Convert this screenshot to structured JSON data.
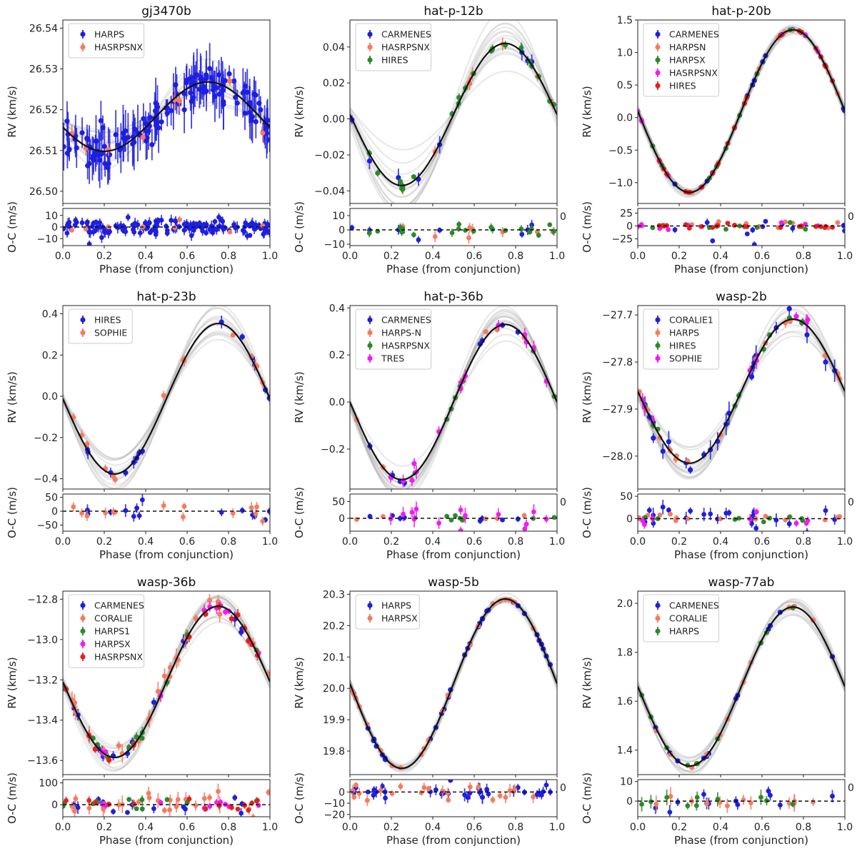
{
  "figure": {
    "rv_ylabel": "RV (km/s)",
    "oc_ylabel": "O-C (m/s)",
    "xlabel": "Phase (from conjunction)",
    "x_ticks": [
      "0.0",
      "0.2",
      "0.4",
      "0.6",
      "0.8",
      "1.0"
    ],
    "zero_marker": "0",
    "colors": {
      "HARPS_blue": "#1f1fe0",
      "salmon": "#f57b60",
      "green": "#2a8a2a",
      "magenta": "#f21bf2",
      "red": "#e81e1e",
      "model": "#111111",
      "model_band": "#9a9a9a"
    }
  },
  "chart_data": [
    {
      "type": "scatter",
      "title": "gj3470b",
      "xlim": [
        0,
        1
      ],
      "rv": {
        "ylim": [
          26.497,
          26.542
        ],
        "ticks": [
          26.5,
          26.51,
          26.52,
          26.53,
          26.54
        ],
        "tick_labels": [
          "26.50",
          "26.51",
          "26.52",
          "26.53",
          "26.54"
        ]
      },
      "oc": {
        "ylim": [
          -16,
          16
        ],
        "ticks": [
          -10,
          0,
          10
        ],
        "tick_labels": [
          "−10",
          "0",
          "10"
        ]
      },
      "model": {
        "offset": 26.5183,
        "amplitude": 0.0085,
        "phase_peak": 0.7,
        "band": 0.0009
      },
      "legend": [
        "HARPS",
        "HASRPSNX"
      ],
      "series": [
        {
          "name": "HARPS",
          "color": "#1f1fe0",
          "n": 150,
          "rv_scatter": 0.0025,
          "err_range": [
            0.002,
            0.007
          ],
          "oc_scatter": 3.5,
          "oc_err": [
            2,
            5
          ]
        },
        {
          "name": "HASRPSNX",
          "color": "#f57b60",
          "n": 8,
          "rv_scatter": 0.0015,
          "err_range": [
            0.001,
            0.003
          ],
          "oc_scatter": 2.5,
          "oc_err": [
            1,
            3
          ]
        }
      ]
    },
    {
      "type": "scatter",
      "title": "hat-p-12b",
      "xlim": [
        0,
        1
      ],
      "rv": {
        "ylim": [
          -0.047,
          0.055
        ],
        "ticks": [
          -0.04,
          -0.02,
          0.0,
          0.02,
          0.04
        ],
        "tick_labels": [
          "−0.04",
          "−0.02",
          "0.00",
          "0.02",
          "0.04"
        ]
      },
      "oc": {
        "ylim": [
          -11,
          15
        ],
        "ticks": [
          -10,
          0,
          10
        ],
        "tick_labels": [
          "−10",
          "0",
          "10"
        ]
      },
      "model": {
        "offset": 0.0025,
        "amplitude": 0.0395,
        "phase_peak": 0.75,
        "band": 0.003
      },
      "legend": [
        "CARMENES",
        "HASRPSNX",
        "HIRES"
      ],
      "series": [
        {
          "name": "CARMENES",
          "color": "#1f1fe0",
          "n": 8,
          "rv_scatter": 0.002,
          "err_range": [
            0.002,
            0.005
          ],
          "oc_scatter": 3,
          "oc_err": [
            2,
            4
          ]
        },
        {
          "name": "HASRPSNX",
          "color": "#f57b60",
          "n": 8,
          "rv_scatter": 0.002,
          "err_range": [
            0.002,
            0.005
          ],
          "oc_scatter": 3,
          "oc_err": [
            2,
            5
          ]
        },
        {
          "name": "HIRES",
          "color": "#2a8a2a",
          "n": 22,
          "rv_scatter": 0.0015,
          "err_range": [
            0.001,
            0.003
          ],
          "oc_scatter": 2,
          "oc_err": [
            1,
            3
          ]
        }
      ]
    },
    {
      "type": "scatter",
      "title": "hat-p-20b",
      "xlim": [
        0,
        1
      ],
      "rv": {
        "ylim": [
          -1.32,
          1.5
        ],
        "ticks": [
          -1.0,
          -0.5,
          0.0,
          0.5,
          1.0,
          1.5
        ],
        "tick_labels": [
          "−1.0",
          "−0.5",
          "0.0",
          "0.5",
          "1.0",
          "1.5"
        ]
      },
      "oc": {
        "ylim": [
          -38,
          34
        ],
        "ticks": [
          -25,
          0,
          25
        ],
        "tick_labels": [
          "−25",
          "0",
          "25"
        ]
      },
      "model": {
        "offset": 0.1,
        "amplitude": 1.25,
        "phase_peak": 0.75,
        "band": 0.01
      },
      "legend": [
        "CARMENES",
        "HARPSN",
        "HARPSX",
        "HASRPSNX",
        "HIRES"
      ],
      "series": [
        {
          "name": "CARMENES",
          "color": "#1f1fe0",
          "n": 12,
          "rv_scatter": 0.01,
          "err_range": [
            0.01,
            0.03
          ],
          "oc_scatter": 10,
          "oc_err": [
            3,
            8
          ]
        },
        {
          "name": "HARPSN",
          "color": "#f57b60",
          "n": 14,
          "rv_scatter": 0.004,
          "err_range": [
            0.004,
            0.01
          ],
          "oc_scatter": 3,
          "oc_err": [
            2,
            4
          ]
        },
        {
          "name": "HARPSX",
          "color": "#2a8a2a",
          "n": 10,
          "rv_scatter": 0.004,
          "err_range": [
            0.004,
            0.01
          ],
          "oc_scatter": 3,
          "oc_err": [
            2,
            4
          ]
        },
        {
          "name": "HASRPSNX",
          "color": "#f21bf2",
          "n": 10,
          "rv_scatter": 0.004,
          "err_range": [
            0.004,
            0.01
          ],
          "oc_scatter": 3,
          "oc_err": [
            2,
            4
          ]
        },
        {
          "name": "HIRES",
          "color": "#e81e1e",
          "n": 20,
          "rv_scatter": 0.004,
          "err_range": [
            0.004,
            0.01
          ],
          "oc_scatter": 2.5,
          "oc_err": [
            2,
            4
          ]
        }
      ]
    },
    {
      "type": "scatter",
      "title": "hat-p-23b",
      "xlim": [
        0,
        1
      ],
      "rv": {
        "ylim": [
          -0.45,
          0.44
        ],
        "ticks": [
          -0.4,
          -0.2,
          0.0,
          0.2,
          0.4
        ],
        "tick_labels": [
          "−0.4",
          "−0.2",
          "0.0",
          "0.2",
          "0.4"
        ]
      },
      "oc": {
        "ylim": [
          -72,
          62
        ],
        "ticks": [
          -50,
          0,
          50
        ],
        "tick_labels": [
          "−50",
          "0",
          "50"
        ]
      },
      "model": {
        "offset": -0.012,
        "amplitude": 0.365,
        "phase_peak": 0.75,
        "band": 0.015
      },
      "legend": [
        "HIRES",
        "SOPHIE"
      ],
      "series": [
        {
          "name": "HIRES",
          "color": "#1f1fe0",
          "n": 14,
          "rv_scatter": 0.015,
          "err_range": [
            0.015,
            0.035
          ],
          "oc_scatter": 15,
          "oc_err": [
            10,
            25
          ]
        },
        {
          "name": "SOPHIE",
          "color": "#f57b60",
          "n": 14,
          "rv_scatter": 0.015,
          "err_range": [
            0.01,
            0.03
          ],
          "oc_scatter": 15,
          "oc_err": [
            10,
            22
          ]
        }
      ]
    },
    {
      "type": "scatter",
      "title": "hat-p-36b",
      "xlim": [
        0,
        1
      ],
      "rv": {
        "ylim": [
          -0.37,
          0.41
        ],
        "ticks": [
          -0.2,
          0.0,
          0.2,
          0.4
        ],
        "tick_labels": [
          "−0.2",
          "0.0",
          "0.2",
          "0.4"
        ]
      },
      "oc": {
        "ylim": [
          -38,
          72
        ],
        "ticks": [
          0,
          50
        ],
        "tick_labels": [
          "0",
          "50"
        ]
      },
      "model": {
        "offset": 0.0,
        "amplitude": 0.33,
        "phase_peak": 0.75,
        "band": 0.012
      },
      "legend": [
        "CARMENES",
        "HARPS-N",
        "HASRPSNX",
        "TRES"
      ],
      "series": [
        {
          "name": "CARMENES",
          "color": "#1f1fe0",
          "n": 8,
          "rv_scatter": 0.008,
          "err_range": [
            0.008,
            0.02
          ],
          "oc_scatter": 6,
          "oc_err": [
            5,
            10
          ]
        },
        {
          "name": "HARPS-N",
          "color": "#f57b60",
          "n": 6,
          "rv_scatter": 0.008,
          "err_range": [
            0.005,
            0.015
          ],
          "oc_scatter": 5,
          "oc_err": [
            3,
            8
          ]
        },
        {
          "name": "HASRPSNX",
          "color": "#2a8a2a",
          "n": 8,
          "rv_scatter": 0.004,
          "err_range": [
            0.003,
            0.01
          ],
          "oc_scatter": 4,
          "oc_err": [
            2,
            5
          ]
        },
        {
          "name": "TRES",
          "color": "#f21bf2",
          "n": 14,
          "rv_scatter": 0.015,
          "err_range": [
            0.015,
            0.03
          ],
          "oc_scatter": 18,
          "oc_err": [
            10,
            25
          ]
        }
      ]
    },
    {
      "type": "scatter",
      "title": "wasp-2b",
      "xlim": [
        0,
        1
      ],
      "rv": {
        "ylim": [
          -28.07,
          -27.68
        ],
        "ticks": [
          -28.0,
          -27.9,
          -27.8,
          -27.7
        ],
        "tick_labels": [
          "−28.0",
          "−27.9",
          "−27.8",
          "−27.7"
        ]
      },
      "oc": {
        "ylim": [
          -28,
          55
        ],
        "ticks": [
          0,
          50
        ],
        "tick_labels": [
          "0",
          "50"
        ]
      },
      "model": {
        "offset": -27.862,
        "amplitude": 0.153,
        "phase_peak": 0.75,
        "band": 0.006
      },
      "legend": [
        "CORALIE1",
        "HARPS",
        "HIRES",
        "SOPHIE"
      ],
      "series": [
        {
          "name": "CORALIE1",
          "color": "#1f1fe0",
          "n": 22,
          "rv_scatter": 0.012,
          "err_range": [
            0.008,
            0.025
          ],
          "oc_scatter": 12,
          "oc_err": [
            6,
            18
          ]
        },
        {
          "name": "HARPS",
          "color": "#f57b60",
          "n": 16,
          "rv_scatter": 0.004,
          "err_range": [
            0.003,
            0.01
          ],
          "oc_scatter": 4,
          "oc_err": [
            3,
            8
          ]
        },
        {
          "name": "HIRES",
          "color": "#2a8a2a",
          "n": 10,
          "rv_scatter": 0.004,
          "err_range": [
            0.003,
            0.008
          ],
          "oc_scatter": 4,
          "oc_err": [
            2,
            6
          ]
        },
        {
          "name": "SOPHIE",
          "color": "#f21bf2",
          "n": 8,
          "rv_scatter": 0.01,
          "err_range": [
            0.008,
            0.02
          ],
          "oc_scatter": 8,
          "oc_err": [
            5,
            12
          ]
        }
      ]
    },
    {
      "type": "scatter",
      "title": "wasp-36b",
      "xlim": [
        0,
        1
      ],
      "rv": {
        "ylim": [
          -13.67,
          -12.76
        ],
        "ticks": [
          -13.6,
          -13.4,
          -13.2,
          -13.0,
          -12.8
        ],
        "tick_labels": [
          "−13.6",
          "−13.4",
          "−13.2",
          "−13.0",
          "−12.8"
        ]
      },
      "oc": {
        "ylim": [
          -55,
          115
        ],
        "ticks": [
          0,
          100
        ],
        "tick_labels": [
          "0",
          "100"
        ]
      },
      "model": {
        "offset": -13.21,
        "amplitude": 0.375,
        "phase_peak": 0.75,
        "band": 0.012
      },
      "legend": [
        "CARMENES",
        "CORALIE",
        "HARPS1",
        "HARPSX",
        "HASRPSNX"
      ],
      "series": [
        {
          "name": "CARMENES",
          "color": "#1f1fe0",
          "n": 14,
          "rv_scatter": 0.02,
          "err_range": [
            0.015,
            0.04
          ],
          "oc_scatter": 20,
          "oc_err": [
            10,
            30
          ]
        },
        {
          "name": "CORALIE",
          "color": "#f57b60",
          "n": 26,
          "rv_scatter": 0.025,
          "err_range": [
            0.02,
            0.05
          ],
          "oc_scatter": 25,
          "oc_err": [
            15,
            40
          ]
        },
        {
          "name": "HARPS1",
          "color": "#2a8a2a",
          "n": 14,
          "rv_scatter": 0.015,
          "err_range": [
            0.01,
            0.03
          ],
          "oc_scatter": 15,
          "oc_err": [
            8,
            20
          ]
        },
        {
          "name": "HARPSX",
          "color": "#f21bf2",
          "n": 10,
          "rv_scatter": 0.015,
          "err_range": [
            0.01,
            0.03
          ],
          "oc_scatter": 12,
          "oc_err": [
            8,
            20
          ]
        },
        {
          "name": "HASRPSNX",
          "color": "#e81e1e",
          "n": 14,
          "rv_scatter": 0.015,
          "err_range": [
            0.01,
            0.03
          ],
          "oc_scatter": 12,
          "oc_err": [
            8,
            20
          ]
        }
      ]
    },
    {
      "type": "scatter",
      "title": "wasp-5b",
      "xlim": [
        0,
        1
      ],
      "rv": {
        "ylim": [
          19.725,
          20.31
        ],
        "ticks": [
          19.8,
          19.9,
          20.0,
          20.1,
          20.2,
          20.3
        ],
        "tick_labels": [
          "19.8",
          "19.9",
          "20.0",
          "20.1",
          "20.2",
          "20.3"
        ]
      },
      "oc": {
        "ylim": [
          -22,
          11
        ],
        "ticks": [
          -20,
          -10,
          0
        ],
        "tick_labels": [
          "−20",
          "−10",
          "0"
        ]
      },
      "model": {
        "offset": 20.015,
        "amplitude": 0.27,
        "phase_peak": 0.75,
        "band": 0.003
      },
      "legend": [
        "HARPS",
        "HARPSX"
      ],
      "series": [
        {
          "name": "HARPS",
          "color": "#1f1fe0",
          "n": 34,
          "rv_scatter": 0.003,
          "err_range": [
            0.002,
            0.006
          ],
          "oc_scatter": 3,
          "oc_err": [
            2,
            6
          ]
        },
        {
          "name": "HARPSX",
          "color": "#f57b60",
          "n": 22,
          "rv_scatter": 0.004,
          "err_range": [
            0.003,
            0.008
          ],
          "oc_scatter": 4,
          "oc_err": [
            2,
            6
          ]
        }
      ]
    },
    {
      "type": "scatter",
      "title": "wasp-77ab",
      "xlim": [
        0,
        1
      ],
      "rv": {
        "ylim": [
          1.3,
          2.05
        ],
        "ticks": [
          1.4,
          1.6,
          1.8,
          2.0
        ],
        "tick_labels": [
          "1.4",
          "1.6",
          "1.8",
          "2.0"
        ]
      },
      "oc": {
        "ylim": [
          -8,
          11
        ],
        "ticks": [
          0,
          10
        ],
        "tick_labels": [
          "0",
          "10"
        ]
      },
      "model": {
        "offset": 1.66,
        "amplitude": 0.325,
        "phase_peak": 0.75,
        "band": 0.006
      },
      "legend": [
        "CARMENES",
        "CORALIE",
        "HARPS"
      ],
      "series": [
        {
          "name": "CARMENES",
          "color": "#1f1fe0",
          "n": 12,
          "rv_scatter": 0.003,
          "err_range": [
            0.002,
            0.006
          ],
          "oc_scatter": 2.5,
          "oc_err": [
            1.5,
            4
          ]
        },
        {
          "name": "CORALIE",
          "color": "#f57b60",
          "n": 12,
          "rv_scatter": 0.005,
          "err_range": [
            0.004,
            0.01
          ],
          "oc_scatter": 3,
          "oc_err": [
            2,
            5
          ]
        },
        {
          "name": "HARPS",
          "color": "#2a8a2a",
          "n": 10,
          "rv_scatter": 0.003,
          "err_range": [
            0.002,
            0.005
          ],
          "oc_scatter": 2.5,
          "oc_err": [
            1.5,
            4
          ]
        }
      ]
    }
  ]
}
